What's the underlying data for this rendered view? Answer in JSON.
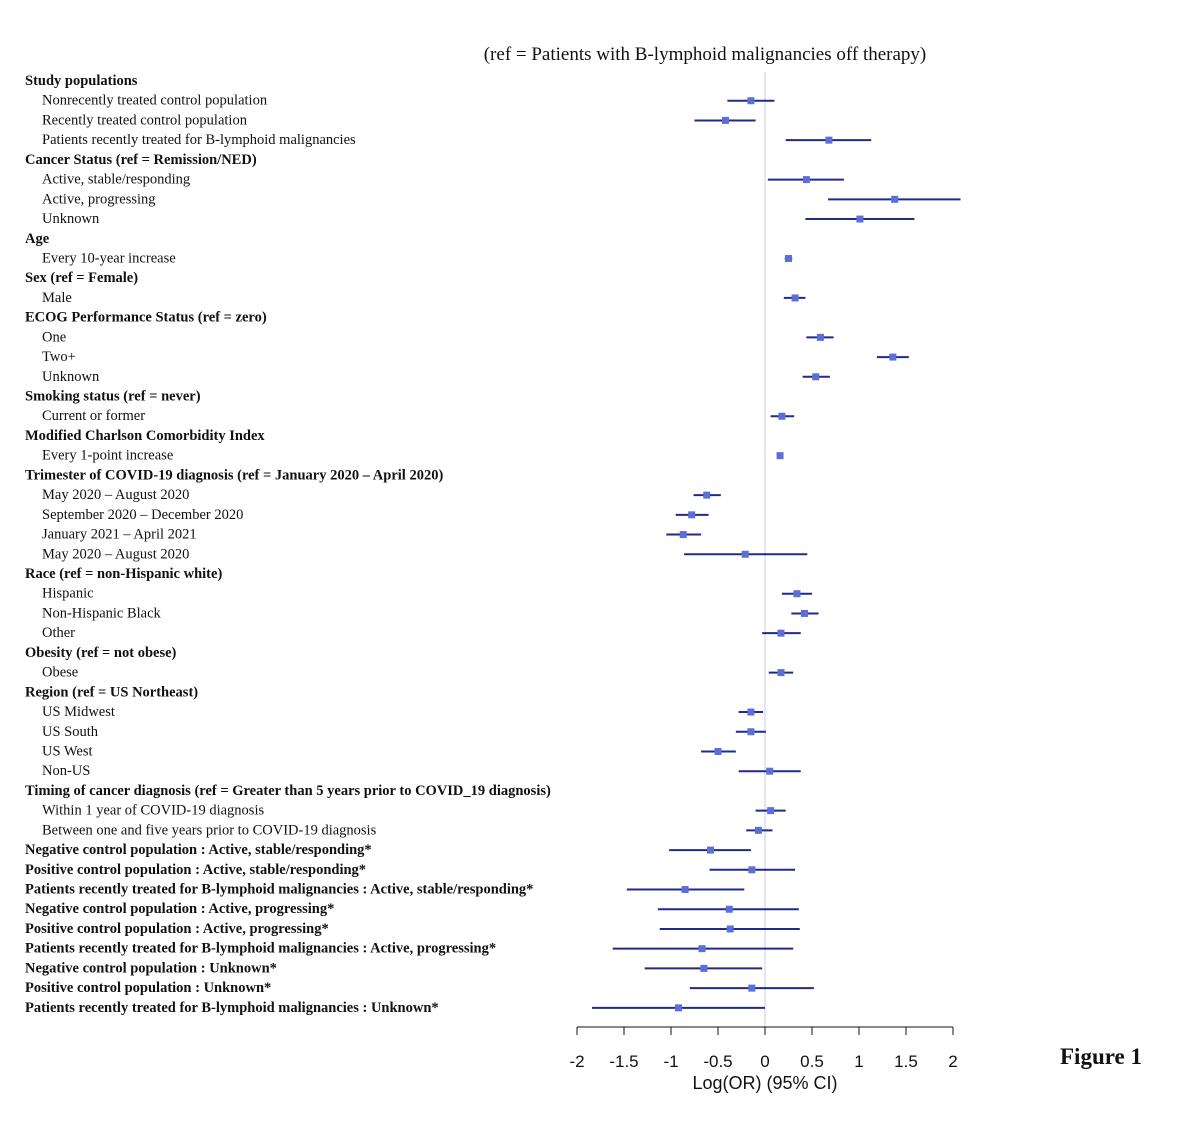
{
  "figure_label": "Figure 1",
  "chart_data": {
    "type": "forest",
    "title": "(ref = Patients with B-lymphoid malignancies off therapy)",
    "xlabel": "Log(OR) (95% CI)",
    "xlim": [
      -2,
      2
    ],
    "xticks": [
      -2,
      -1.5,
      -1,
      -0.5,
      0,
      0.5,
      1,
      1.5,
      2
    ],
    "xtick_labels": [
      "-2",
      "-1.5",
      "-1",
      "-0.5",
      "0",
      "0.5",
      "1",
      "1.5",
      "2"
    ],
    "reference_line": 0,
    "marker_color": "#5b6fd6",
    "line_color": "#1f2a8a",
    "rows": [
      {
        "label": "Study populations",
        "header": true
      },
      {
        "label": "Nonrecently treated control population",
        "est": -0.15,
        "lo": -0.4,
        "hi": 0.1
      },
      {
        "label": "Recently treated control population",
        "est": -0.42,
        "lo": -0.75,
        "hi": -0.1
      },
      {
        "label": "Patients recently treated for B-lymphoid malignancies",
        "est": 0.68,
        "lo": 0.22,
        "hi": 1.13
      },
      {
        "label": "Cancer Status (ref = Remission/NED)",
        "header": true
      },
      {
        "label": "Active, stable/responding",
        "est": 0.44,
        "lo": 0.03,
        "hi": 0.84
      },
      {
        "label": "Active, progressing",
        "est": 1.38,
        "lo": 0.67,
        "hi": 2.08
      },
      {
        "label": "Unknown",
        "est": 1.01,
        "lo": 0.43,
        "hi": 1.59
      },
      {
        "label": "Age",
        "header": true
      },
      {
        "label": "Every 10-year increase",
        "est": 0.25,
        "lo": 0.21,
        "hi": 0.29
      },
      {
        "label": "Sex (ref = Female)",
        "header": true
      },
      {
        "label": "Male",
        "est": 0.32,
        "lo": 0.2,
        "hi": 0.43
      },
      {
        "label": "ECOG Performance Status (ref = zero)",
        "header": true
      },
      {
        "label": "One",
        "est": 0.59,
        "lo": 0.44,
        "hi": 0.73
      },
      {
        "label": "Two+",
        "est": 1.36,
        "lo": 1.19,
        "hi": 1.53
      },
      {
        "label": "Unknown",
        "est": 0.54,
        "lo": 0.4,
        "hi": 0.69
      },
      {
        "label": "Smoking status (ref = never)",
        "header": true
      },
      {
        "label": "Current or former",
        "est": 0.18,
        "lo": 0.06,
        "hi": 0.31
      },
      {
        "label": "Modified Charlson Comorbidity Index",
        "header": true
      },
      {
        "label": "Every 1-point increase",
        "est": 0.16,
        "lo": 0.13,
        "hi": 0.19
      },
      {
        "label": "Trimester of COVID-19 diagnosis (ref = January 2020 – April 2020)",
        "header": true
      },
      {
        "label": "May 2020 – August 2020",
        "est": -0.62,
        "lo": -0.76,
        "hi": -0.47
      },
      {
        "label": "September 2020 – December 2020",
        "est": -0.78,
        "lo": -0.95,
        "hi": -0.6
      },
      {
        "label": "January 2021 – April 2021",
        "est": -0.87,
        "lo": -1.05,
        "hi": -0.68
      },
      {
        "label": "May 2020 – August 2020",
        "est": -0.21,
        "lo": -0.86,
        "hi": 0.45
      },
      {
        "label": "Race (ref = non-Hispanic white)",
        "header": true
      },
      {
        "label": "Hispanic",
        "est": 0.34,
        "lo": 0.18,
        "hi": 0.5
      },
      {
        "label": "Non-Hispanic Black",
        "est": 0.42,
        "lo": 0.28,
        "hi": 0.57
      },
      {
        "label": "Other",
        "est": 0.17,
        "lo": -0.03,
        "hi": 0.38
      },
      {
        "label": "Obesity (ref = not obese)",
        "header": true
      },
      {
        "label": "Obese",
        "est": 0.17,
        "lo": 0.04,
        "hi": 0.3
      },
      {
        "label": "Region (ref = US Northeast)",
        "header": true
      },
      {
        "label": "US Midwest",
        "est": -0.15,
        "lo": -0.28,
        "hi": -0.02
      },
      {
        "label": "US South",
        "est": -0.15,
        "lo": -0.31,
        "hi": 0.01
      },
      {
        "label": "US West",
        "est": -0.5,
        "lo": -0.68,
        "hi": -0.31
      },
      {
        "label": "Non-US",
        "est": 0.05,
        "lo": -0.28,
        "hi": 0.38
      },
      {
        "label": "Timing of cancer diagnosis (ref = Greater than 5 years prior to COVID_19 diagnosis)",
        "header": true
      },
      {
        "label": "Within 1 year of COVID-19 diagnosis",
        "est": 0.06,
        "lo": -0.1,
        "hi": 0.22
      },
      {
        "label": "Between one and five years prior to COVID-19 diagnosis",
        "est": -0.07,
        "lo": -0.2,
        "hi": 0.08
      },
      {
        "label": "Negative control population : Active, stable/responding*",
        "bold": true,
        "est": -0.58,
        "lo": -1.02,
        "hi": -0.15
      },
      {
        "label": "Positive control population : Active, stable/responding*",
        "bold": true,
        "est": -0.14,
        "lo": -0.59,
        "hi": 0.32
      },
      {
        "label": "Patients recently treated for B-lymphoid malignancies : Active, stable/responding*",
        "bold": true,
        "est": -0.85,
        "lo": -1.47,
        "hi": -0.22
      },
      {
        "label": "Negative control population : Active, progressing*",
        "bold": true,
        "est": -0.38,
        "lo": -1.14,
        "hi": 0.36
      },
      {
        "label": "Positive control population : Active, progressing*",
        "bold": true,
        "est": -0.37,
        "lo": -1.12,
        "hi": 0.37
      },
      {
        "label": "Patients recently treated for B-lymphoid malignancies : Active, progressing*",
        "bold": true,
        "est": -0.67,
        "lo": -1.62,
        "hi": 0.3
      },
      {
        "label": "Negative control population : Unknown*",
        "bold": true,
        "est": -0.65,
        "lo": -1.28,
        "hi": -0.03
      },
      {
        "label": "Positive control population : Unknown*",
        "bold": true,
        "est": -0.14,
        "lo": -0.8,
        "hi": 0.52
      },
      {
        "label": "Patients recently treated for B-lymphoid malignancies : Unknown*",
        "bold": true,
        "est": -0.92,
        "lo": -1.84,
        "hi": 0.0
      }
    ]
  }
}
